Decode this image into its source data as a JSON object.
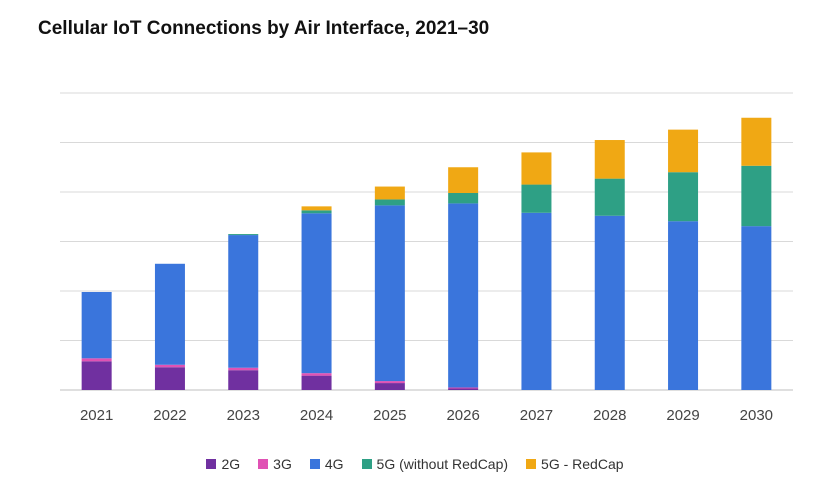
{
  "title": "Cellular IoT Connections  by Air Interface, 2021–30",
  "chart_data": {
    "type": "bar",
    "stacked": true,
    "title": "Cellular IoT Connections  by Air Interface, 2021–30",
    "xlabel": "",
    "ylabel": "",
    "y_tick_labels_shown": false,
    "ylim": [
      0,
      6
    ],
    "grid": true,
    "legend_position": "bottom",
    "categories": [
      "2021",
      "2022",
      "2023",
      "2024",
      "2025",
      "2026",
      "2027",
      "2028",
      "2029",
      "2030"
    ],
    "series": [
      {
        "name": "2G",
        "color": "#7030a0",
        "values": [
          0.58,
          0.46,
          0.4,
          0.29,
          0.14,
          0.03,
          0.0,
          0.0,
          0.0,
          0.0
        ]
      },
      {
        "name": "3G",
        "color": "#e052b4",
        "values": [
          0.06,
          0.05,
          0.05,
          0.05,
          0.04,
          0.02,
          0.0,
          0.0,
          0.0,
          0.0
        ]
      },
      {
        "name": "4G",
        "color": "#3a75dc",
        "values": [
          1.34,
          2.04,
          2.68,
          3.23,
          3.55,
          3.72,
          3.58,
          3.52,
          3.41,
          3.31
        ]
      },
      {
        "name": "5G (without RedCap)",
        "color": "#2ea085",
        "values": [
          0.0,
          0.0,
          0.02,
          0.06,
          0.12,
          0.21,
          0.57,
          0.75,
          0.99,
          1.22
        ]
      },
      {
        "name": "5G - RedCap",
        "color": "#f0a814",
        "values": [
          0.0,
          0.0,
          0.0,
          0.08,
          0.26,
          0.52,
          0.65,
          0.78,
          0.86,
          0.97
        ]
      }
    ]
  }
}
